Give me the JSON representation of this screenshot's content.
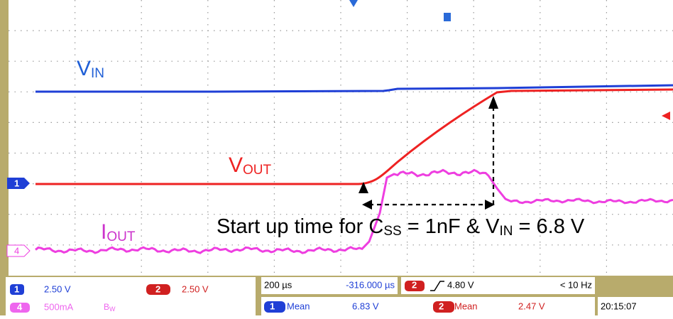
{
  "labels": {
    "vin": {
      "main": "V",
      "sub": "IN"
    },
    "vout": {
      "main": "V",
      "sub": "OUT"
    },
    "iout": {
      "main": "I",
      "sub": "OUT"
    }
  },
  "annotation": {
    "part1": "Start up time for C",
    "sub1": "SS",
    "part2": " = 1nF & V",
    "sub2": "IN",
    "part3": " = 6.8 V"
  },
  "markers": {
    "ch1": "1",
    "ch4": "4"
  },
  "status": {
    "ch1": {
      "num": "1",
      "scale": "2.50 V"
    },
    "ch2": {
      "num": "2",
      "scale": "2.50 V"
    },
    "ch4": {
      "num": "4",
      "scale": "500mA",
      "bw": "B",
      "bw_sub": "W"
    },
    "timebase": {
      "scale": "200 µs",
      "position": "-316.000 µs"
    },
    "trigger": {
      "num": "2",
      "level": "4.80 V",
      "freq": "< 10 Hz"
    },
    "measure1": {
      "num": "1",
      "type": "Mean",
      "value": "6.83 V"
    },
    "measure2": {
      "num": "2",
      "type": "Mean",
      "value": "2.47 V"
    },
    "clock": "20:15:07"
  }
}
